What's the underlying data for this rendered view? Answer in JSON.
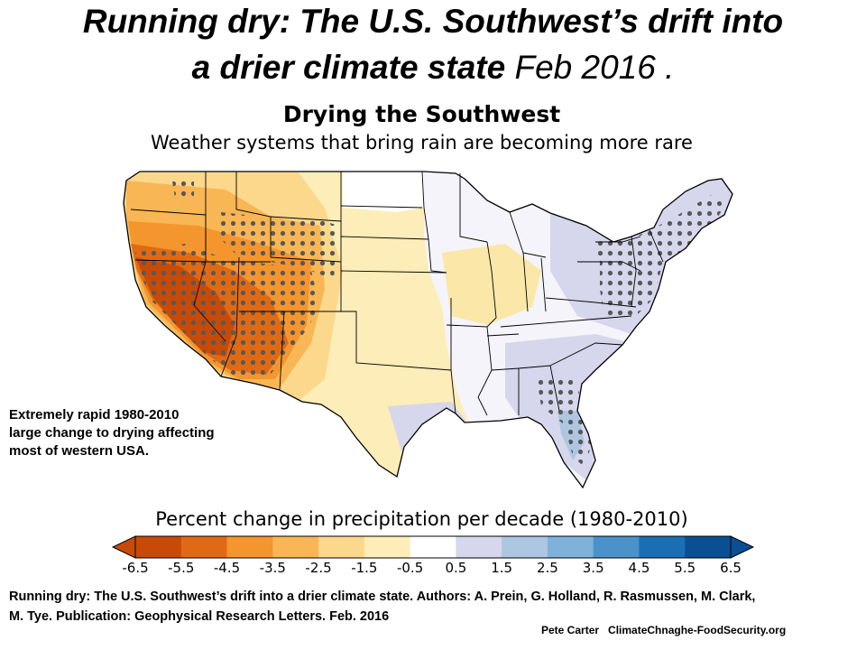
{
  "header": {
    "title_line1": "Running dry: The U.S. Southwest’s drift into",
    "title_line2_main": "a drier climate state",
    "title_line2_date": "Feb 2016 ."
  },
  "map": {
    "title": "Drying the Southwest",
    "subtitle": "Weather systems that bring rain are becoming more rare",
    "region": "Contiguous United States",
    "stippling": "dots mark statistically significant change"
  },
  "annotation": {
    "lines": [
      "Extremely rapid 1980-2010",
      "large change to drying affecting",
      "most of western USA."
    ]
  },
  "colorbar": {
    "label": "Percent change in precipitation per decade (1980-2010)",
    "ticks": [
      "-6.5",
      "-5.5",
      "-4.5",
      "-3.5",
      "-2.5",
      "-1.5",
      "-0.5",
      "0.5",
      "1.5",
      "2.5",
      "3.5",
      "4.5",
      "5.5",
      "6.5"
    ],
    "colors": [
      "#c84a06",
      "#e06a14",
      "#f4952e",
      "#f9b654",
      "#fcd88c",
      "#fdedb8",
      "#ffffff",
      "#d6d6ec",
      "#adc6e2",
      "#7fb2da",
      "#4a92c9",
      "#1a6fb4",
      "#0b4f93"
    ]
  },
  "citation": {
    "line1": "Running dry: The U.S. Southwest’s drift into a drier climate state.   Authors:  A. Prein, G. Holland, R. Rasmussen, M. Clark,",
    "line2": "M. Tye.    Publication: Geophysical Research Letters.  Feb. 2016"
  },
  "credit": {
    "author": "Pete Carter",
    "site": "ClimateChnaghe-FoodSecurity.org"
  }
}
